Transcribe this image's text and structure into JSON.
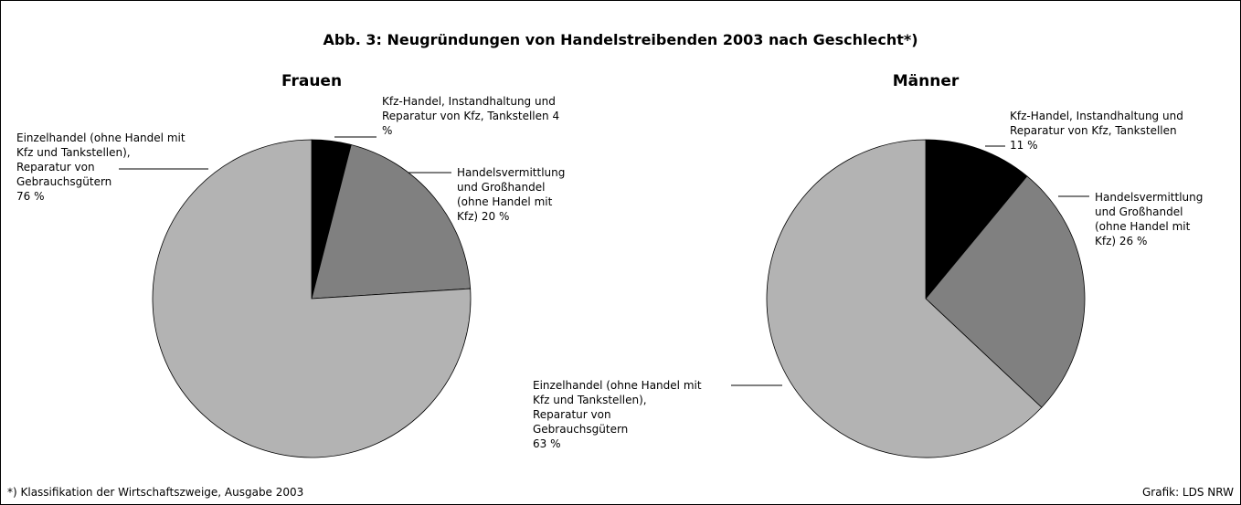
{
  "title": "Abb. 3: Neugründungen von Handelstreibenden 2003 nach Geschlecht*)",
  "chart_data": [
    {
      "type": "pie",
      "title": "Frauen",
      "categories": [
        "Kfz-Handel, Instandhaltung und Reparatur von Kfz, Tankstellen",
        "Handelsvermittlung und Großhandel (ohne Handel mit Kfz)",
        "Einzelhandel (ohne Handel mit Kfz und Tankstellen), Reparatur von Gebrauchsgütern"
      ],
      "values": [
        4,
        20,
        76
      ],
      "value_labels": [
        "4 %",
        "20 %",
        "76 %"
      ],
      "colors": [
        "#000000",
        "#808080",
        "#b3b3b3"
      ]
    },
    {
      "type": "pie",
      "title": "Männer",
      "categories": [
        "Kfz-Handel, Instandhaltung und Reparatur von Kfz, Tankstellen",
        "Handelsvermittlung und Großhandel (ohne Handel mit Kfz)",
        "Einzelhandel (ohne Handel mit Kfz und Tankstellen), Reparatur von Gebrauchsgütern"
      ],
      "values": [
        11,
        26,
        63
      ],
      "value_labels": [
        "11 %",
        "26 %",
        "63 %"
      ],
      "colors": [
        "#000000",
        "#808080",
        "#b3b3b3"
      ]
    }
  ],
  "footnote": "*) Klassifikation der Wirtschaftszweige, Ausgabe 2003",
  "source": "Grafik: LDS NRW"
}
